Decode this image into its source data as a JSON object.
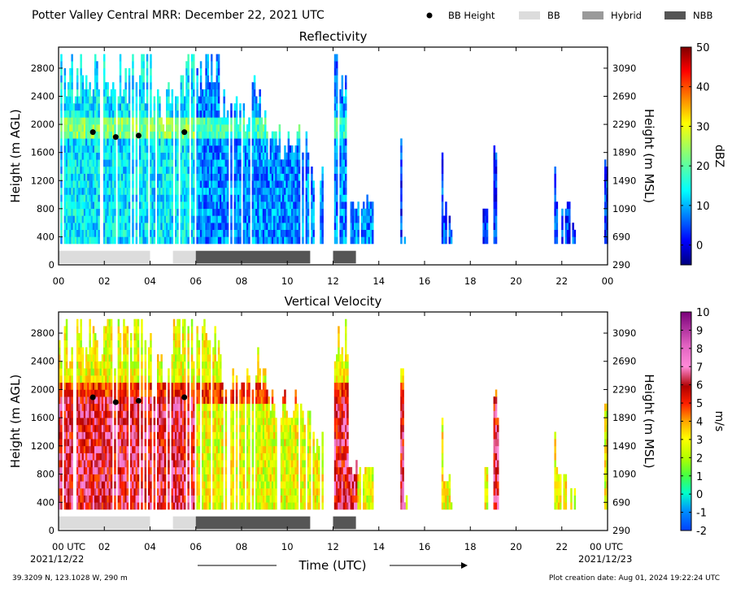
{
  "header": {
    "title": "Potter Valley Central MRR:  December 22, 2021 UTC",
    "legend": [
      {
        "label": "BB Height",
        "marker": "dot",
        "color": "#000000"
      },
      {
        "label": "BB",
        "marker": "bar",
        "color": "#dcdcdc"
      },
      {
        "label": "Hybrid",
        "marker": "bar",
        "color": "#9a9a9a"
      },
      {
        "label": "NBB",
        "marker": "bar",
        "color": "#555555"
      }
    ]
  },
  "footer": {
    "location": "39.3209 N, 123.1028 W, 290 m",
    "creation": "Plot creation date: Aug 01, 2024 19:22:24 UTC",
    "xaxis_title": "Time (UTC)",
    "start_date": "2021/12/22",
    "end_date": "2021/12/23"
  },
  "chart_data": [
    {
      "type": "heatmap",
      "title": "Reflectivity",
      "ylabel": "Height (m AGL)",
      "ylabel_right": "Height (m MSL)",
      "x_ticks": [
        "00",
        "02",
        "04",
        "06",
        "08",
        "10",
        "12",
        "14",
        "16",
        "18",
        "20",
        "22",
        "00"
      ],
      "xlim": [
        0,
        24
      ],
      "y_ticks": [
        0,
        400,
        800,
        1200,
        1600,
        2000,
        2400,
        2800
      ],
      "ylim": [
        0,
        3100
      ],
      "y2_ticks": [
        290,
        690,
        1090,
        1490,
        1890,
        2290,
        2690,
        3090
      ],
      "colorbar": {
        "label": "dBZ",
        "range": [
          -5,
          50
        ],
        "ticks": [
          0,
          10,
          20,
          30,
          40,
          50
        ],
        "colormap": "jet"
      },
      "bb_height_points": [
        {
          "x": 1.5,
          "y": 1890
        },
        {
          "x": 2.5,
          "y": 1820
        },
        {
          "x": 3.5,
          "y": 1840
        },
        {
          "x": 5.5,
          "y": 1890
        }
      ],
      "bb_type_segments": [
        {
          "type": "BB",
          "start": 0.0,
          "end": 4.0
        },
        {
          "type": "BB",
          "start": 5.0,
          "end": 6.0
        },
        {
          "type": "NBB",
          "start": 6.0,
          "end": 11.0
        },
        {
          "type": "NBB",
          "start": 12.0,
          "end": 13.0
        }
      ]
    },
    {
      "type": "heatmap",
      "title": "Vertical Velocity",
      "ylabel": "Height (m AGL)",
      "ylabel_right": "Height (m MSL)",
      "x_ticks": [
        "00 UTC",
        "02",
        "04",
        "06",
        "08",
        "10",
        "12",
        "14",
        "16",
        "18",
        "20",
        "22",
        "00 UTC"
      ],
      "xlim": [
        0,
        24
      ],
      "y_ticks": [
        0,
        400,
        800,
        1200,
        1600,
        2000,
        2400,
        2800
      ],
      "ylim": [
        0,
        3100
      ],
      "y2_ticks": [
        290,
        690,
        1090,
        1490,
        1890,
        2290,
        2690,
        3090
      ],
      "colorbar": {
        "label": "m/s",
        "range": [
          -2,
          10
        ],
        "ticks": [
          -2,
          -1,
          0,
          1,
          2,
          3,
          4,
          5,
          6,
          7,
          8,
          9,
          10
        ],
        "colormap": "velocity"
      },
      "bb_height_points": [
        {
          "x": 1.5,
          "y": 1890
        },
        {
          "x": 2.5,
          "y": 1820
        },
        {
          "x": 3.5,
          "y": 1840
        },
        {
          "x": 5.5,
          "y": 1890
        }
      ],
      "bb_type_segments": [
        {
          "type": "BB",
          "start": 0.0,
          "end": 4.0
        },
        {
          "type": "BB",
          "start": 5.0,
          "end": 6.0
        },
        {
          "type": "NBB",
          "start": 6.0,
          "end": 11.0
        },
        {
          "type": "NBB",
          "start": 12.0,
          "end": 13.0
        }
      ]
    }
  ]
}
